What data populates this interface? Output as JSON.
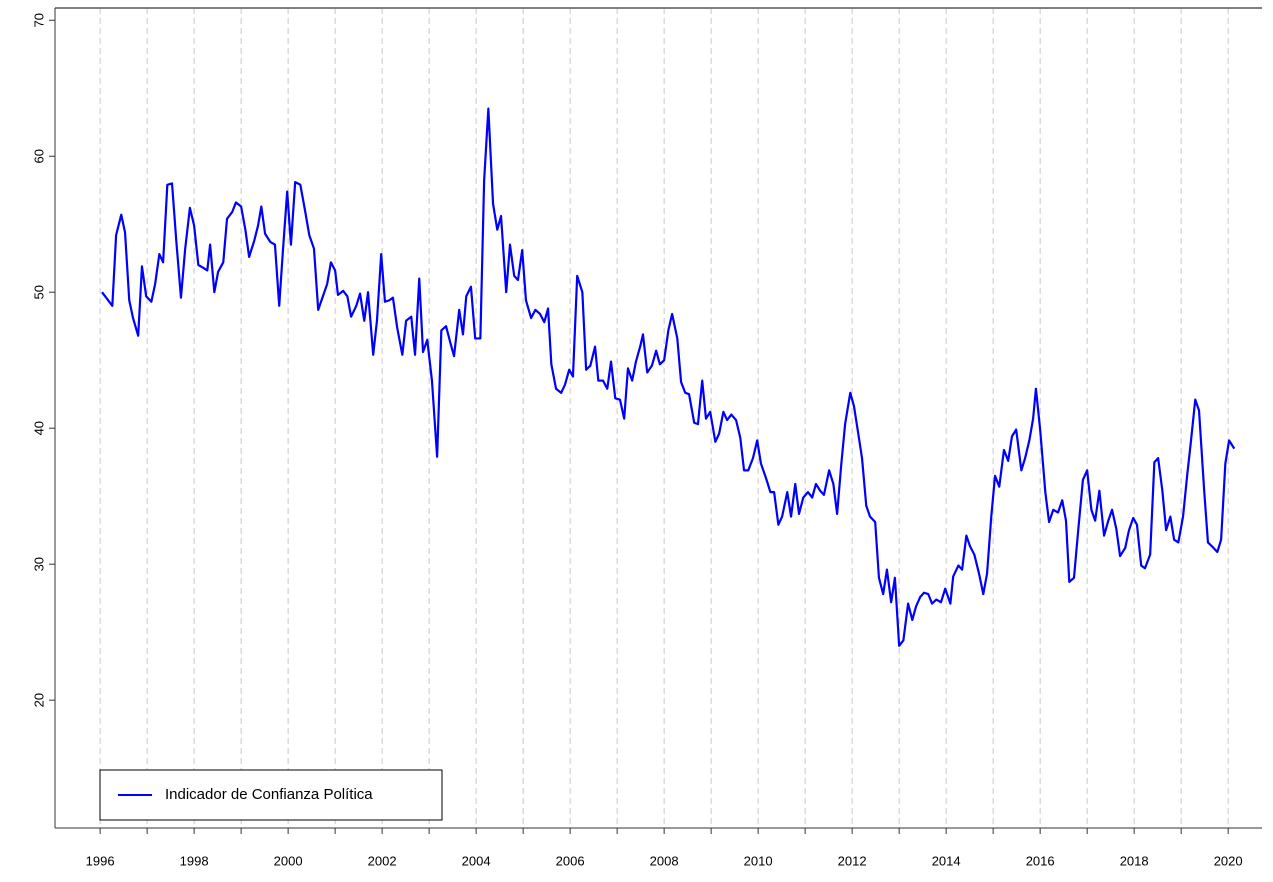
{
  "chart_data": {
    "type": "line",
    "legend": "bottomleft",
    "grid": true,
    "xlim": [
      1995.04,
      2020.72
    ],
    "ylim": [
      10.6,
      70.9
    ],
    "xticks": [
      1996,
      1998,
      2000,
      2002,
      2004,
      2006,
      2008,
      2010,
      2012,
      2014,
      2016,
      2018,
      2020
    ],
    "xgrid": [
      1996,
      1997,
      1998,
      1999,
      2000,
      2001,
      2002,
      2003,
      2004,
      2005,
      2006,
      2007,
      2008,
      2009,
      2010,
      2011,
      2012,
      2013,
      2014,
      2015,
      2016,
      2017,
      2018,
      2019,
      2020
    ],
    "yticks": [
      20,
      30,
      40,
      50,
      60,
      70
    ],
    "x": [
      1996.04,
      1996.26,
      1996.34,
      1996.45,
      1996.53,
      1996.62,
      1996.7,
      1996.81,
      1996.89,
      1996.98,
      1997.09,
      1997.17,
      1997.26,
      1997.34,
      1997.43,
      1997.53,
      1997.62,
      1997.72,
      1997.81,
      1997.91,
      1998.0,
      1998.09,
      1998.19,
      1998.28,
      1998.34,
      1998.43,
      1998.51,
      1998.62,
      1998.7,
      1998.81,
      1998.89,
      1999.0,
      1999.09,
      1999.17,
      1999.28,
      1999.36,
      1999.43,
      1999.51,
      1999.62,
      1999.72,
      1999.81,
      1999.89,
      1999.98,
      2000.06,
      2000.15,
      2000.26,
      2000.36,
      2000.45,
      2000.55,
      2000.64,
      2000.74,
      2000.83,
      2000.91,
      2001.0,
      2001.06,
      2001.17,
      2001.26,
      2001.34,
      2001.45,
      2001.53,
      2001.62,
      2001.7,
      2001.81,
      2001.89,
      2001.98,
      2002.06,
      2002.15,
      2002.23,
      2002.32,
      2002.43,
      2002.51,
      2002.62,
      2002.7,
      2002.79,
      2002.87,
      2002.96,
      2003.06,
      2003.17,
      2003.26,
      2003.36,
      2003.45,
      2003.53,
      2003.64,
      2003.72,
      2003.79,
      2003.89,
      2003.98,
      2004.09,
      2004.17,
      2004.26,
      2004.36,
      2004.45,
      2004.53,
      2004.64,
      2004.72,
      2004.81,
      2004.89,
      2004.98,
      2005.06,
      2005.17,
      2005.26,
      2005.36,
      2005.45,
      2005.53,
      2005.6,
      2005.7,
      2005.81,
      2005.89,
      2005.98,
      2006.06,
      2006.15,
      2006.26,
      2006.34,
      2006.43,
      2006.53,
      2006.6,
      2006.7,
      2006.79,
      2006.87,
      2006.96,
      2007.06,
      2007.15,
      2007.23,
      2007.32,
      2007.4,
      2007.49,
      2007.55,
      2007.64,
      2007.74,
      2007.83,
      2007.91,
      2008.0,
      2008.09,
      2008.17,
      2008.28,
      2008.36,
      2008.45,
      2008.53,
      2008.64,
      2008.72,
      2008.81,
      2008.89,
      2008.98,
      2009.09,
      2009.17,
      2009.26,
      2009.34,
      2009.43,
      2009.53,
      2009.62,
      2009.7,
      2009.79,
      2009.89,
      2009.98,
      2010.06,
      2010.17,
      2010.26,
      2010.34,
      2010.43,
      2010.51,
      2010.62,
      2010.7,
      2010.79,
      2010.87,
      2010.96,
      2011.06,
      2011.15,
      2011.23,
      2011.32,
      2011.4,
      2011.51,
      2011.6,
      2011.68,
      2011.77,
      2011.85,
      2011.96,
      2012.04,
      2012.13,
      2012.21,
      2012.3,
      2012.38,
      2012.49,
      2012.57,
      2012.66,
      2012.74,
      2012.83,
      2012.91,
      2013.0,
      2013.09,
      2013.19,
      2013.28,
      2013.36,
      2013.45,
      2013.53,
      2013.62,
      2013.7,
      2013.79,
      2013.89,
      2013.98,
      2014.09,
      2014.15,
      2014.26,
      2014.34,
      2014.43,
      2014.51,
      2014.6,
      2014.7,
      2014.79,
      2014.87,
      2014.96,
      2015.04,
      2015.13,
      2015.23,
      2015.32,
      2015.4,
      2015.49,
      2015.6,
      2015.68,
      2015.77,
      2015.85,
      2015.91,
      2016.0,
      2016.11,
      2016.19,
      2016.28,
      2016.38,
      2016.47,
      2016.55,
      2016.62,
      2016.72,
      2016.81,
      2016.91,
      2017.0,
      2017.09,
      2017.17,
      2017.26,
      2017.36,
      2017.45,
      2017.53,
      2017.62,
      2017.7,
      2017.81,
      2017.89,
      2017.98,
      2018.06,
      2018.15,
      2018.23,
      2018.34,
      2018.43,
      2018.51,
      2018.6,
      2018.68,
      2018.77,
      2018.85,
      2018.94,
      2019.04,
      2019.13,
      2019.21,
      2019.3,
      2019.38,
      2019.49,
      2019.57,
      2019.66,
      2019.77,
      2019.85,
      2019.94,
      2020.02,
      2020.13
    ],
    "series": [
      {
        "name": "Indicador de Confianza Política",
        "color": "#0000ff",
        "values": [
          50.0,
          49.0,
          54.2,
          55.7,
          54.4,
          49.4,
          48.1,
          46.8,
          51.9,
          49.7,
          49.3,
          50.6,
          52.8,
          52.2,
          57.9,
          58.0,
          53.8,
          49.6,
          53.2,
          56.2,
          54.9,
          52.0,
          51.8,
          51.6,
          53.5,
          50.0,
          51.5,
          52.2,
          55.4,
          55.9,
          56.6,
          56.3,
          54.6,
          52.6,
          53.8,
          54.9,
          56.3,
          54.3,
          53.7,
          53.5,
          49.0,
          53.1,
          57.4,
          53.5,
          58.1,
          57.9,
          56.0,
          54.2,
          53.2,
          48.7,
          49.7,
          50.6,
          52.2,
          51.6,
          49.8,
          50.1,
          49.7,
          48.2,
          49.0,
          49.9,
          47.9,
          50.0,
          45.4,
          47.9,
          52.8,
          49.3,
          49.4,
          49.6,
          47.4,
          45.4,
          47.9,
          48.2,
          45.4,
          51.0,
          45.6,
          46.5,
          43.5,
          37.9,
          47.2,
          47.5,
          46.3,
          45.3,
          48.7,
          46.9,
          49.7,
          50.4,
          46.6,
          46.6,
          58.2,
          63.5,
          56.5,
          54.6,
          55.6,
          50.0,
          53.5,
          51.2,
          50.9,
          53.1,
          49.4,
          48.1,
          48.7,
          48.4,
          47.8,
          48.8,
          44.7,
          42.9,
          42.6,
          43.2,
          44.3,
          43.8,
          51.2,
          50.0,
          44.3,
          44.6,
          46.0,
          43.5,
          43.5,
          42.9,
          44.9,
          42.2,
          42.1,
          40.7,
          44.4,
          43.5,
          44.9,
          46.0,
          46.9,
          44.1,
          44.6,
          45.7,
          44.7,
          45.0,
          47.2,
          48.4,
          46.6,
          43.4,
          42.6,
          42.5,
          40.4,
          40.3,
          43.5,
          40.7,
          41.2,
          39.0,
          39.6,
          41.2,
          40.6,
          41.0,
          40.6,
          39.3,
          36.9,
          36.9,
          37.8,
          39.1,
          37.4,
          36.3,
          35.3,
          35.3,
          32.9,
          33.5,
          35.3,
          33.5,
          35.9,
          33.7,
          34.9,
          35.3,
          34.9,
          35.9,
          35.4,
          35.1,
          36.9,
          35.9,
          33.7,
          37.4,
          40.3,
          42.6,
          41.6,
          39.6,
          37.8,
          34.3,
          33.5,
          33.1,
          29.0,
          27.8,
          29.6,
          27.2,
          29.0,
          24.0,
          24.4,
          27.1,
          25.9,
          26.9,
          27.6,
          27.9,
          27.8,
          27.1,
          27.4,
          27.2,
          28.2,
          27.1,
          29.1,
          29.9,
          29.6,
          32.1,
          31.3,
          30.7,
          29.3,
          27.8,
          29.3,
          33.5,
          36.5,
          35.7,
          38.4,
          37.6,
          39.4,
          39.9,
          36.9,
          37.8,
          39.1,
          40.7,
          42.9,
          39.9,
          35.3,
          33.1,
          34.0,
          33.8,
          34.7,
          33.2,
          28.7,
          29.0,
          32.5,
          36.2,
          36.9,
          34.0,
          33.2,
          35.4,
          32.1,
          33.2,
          34.0,
          32.6,
          30.6,
          31.2,
          32.5,
          33.4,
          32.9,
          29.9,
          29.7,
          30.7,
          37.5,
          37.8,
          35.4,
          32.5,
          33.5,
          31.8,
          31.6,
          33.5,
          36.6,
          39.1,
          42.1,
          41.3,
          35.4,
          31.6,
          31.3,
          30.9,
          31.8,
          37.4,
          39.1,
          38.5
        ]
      }
    ]
  }
}
